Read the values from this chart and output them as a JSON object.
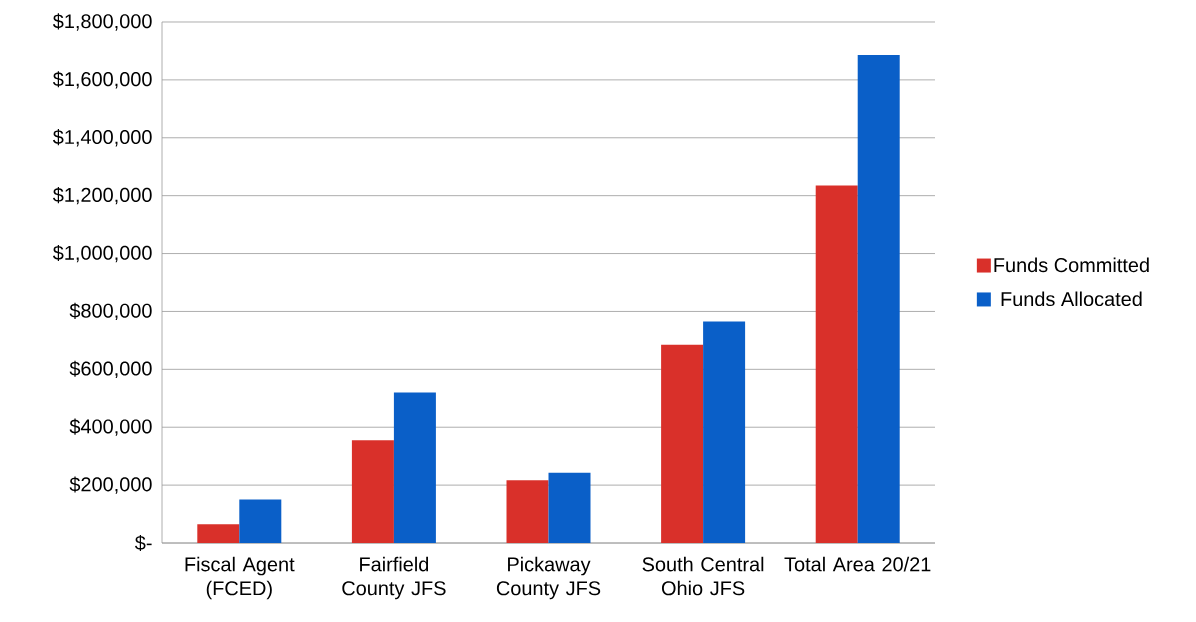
{
  "chart_data": {
    "type": "bar",
    "categories": [
      "Fiscal Agent (FCED)",
      "Fairfield County JFS",
      "Pickaway County JFS",
      "South Central Ohio JFS",
      "Total Area 20/21"
    ],
    "series": [
      {
        "name": "Funds Committed",
        "color": "#d9302a",
        "values": [
          65000,
          355000,
          217000,
          685000,
          1235000
        ]
      },
      {
        "name": "Funds Allocated",
        "color": "#0a5fc8",
        "values": [
          150000,
          520000,
          243000,
          765000,
          1686000
        ]
      }
    ],
    "ylim": [
      0,
      1800000
    ],
    "yticks": [
      {
        "value": 0,
        "label": "$-"
      },
      {
        "value": 200000,
        "label": "$200,000"
      },
      {
        "value": 400000,
        "label": "$400,000"
      },
      {
        "value": 600000,
        "label": "$600,000"
      },
      {
        "value": 800000,
        "label": "$800,000"
      },
      {
        "value": 1000000,
        "label": "$1,000,000"
      },
      {
        "value": 1200000,
        "label": "$1,200,000"
      },
      {
        "value": 1400000,
        "label": "$1,400,000"
      },
      {
        "value": 1600000,
        "label": "$1,600,000"
      },
      {
        "value": 1800000,
        "label": "$1,800,000"
      }
    ],
    "grid": "y",
    "legend": "right"
  }
}
